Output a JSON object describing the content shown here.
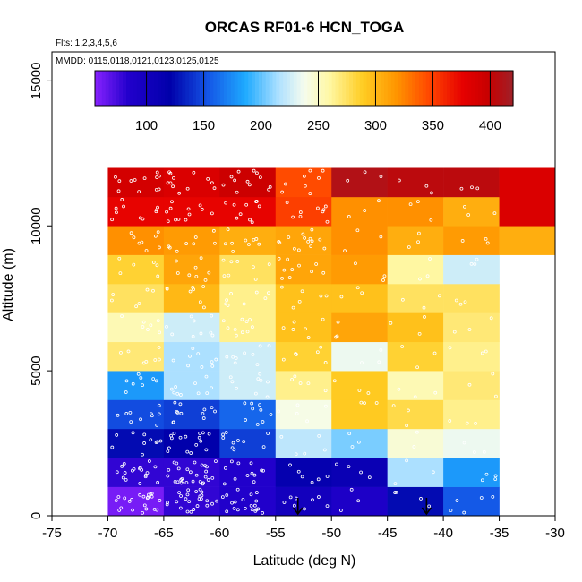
{
  "chart_data": {
    "type": "heatmap",
    "title": "ORCAS RF01-6 HCN_TOGA",
    "notes": [
      "Flts: 1,2,3,4,5,6",
      "MMDD: 0115,0118,0121,0123,0125,0125"
    ],
    "xlabel": "Latitude (deg N)",
    "ylabel": "Altitude (m)",
    "xlim": [
      -75,
      -30
    ],
    "ylim": [
      0,
      16000
    ],
    "x_ticks": [
      -75,
      -70,
      -65,
      -60,
      -55,
      -50,
      -45,
      -40,
      -35,
      -30
    ],
    "y_ticks": [
      0,
      5000,
      10000,
      15000
    ],
    "x_bins": [
      -70,
      -65,
      -60,
      -55,
      -50,
      -45,
      -40,
      -35,
      -30
    ],
    "y_bins": [
      0,
      1000,
      2000,
      3000,
      4000,
      5000,
      6000,
      7000,
      8000,
      9000,
      10000,
      11000,
      12000
    ],
    "values": [
      [
        60,
        80,
        85,
        100,
        90,
        125,
        155,
        null
      ],
      [
        80,
        80,
        85,
        115,
        110,
        215,
        180,
        null
      ],
      [
        125,
        120,
        145,
        220,
        205,
        245,
        235,
        null
      ],
      [
        150,
        145,
        160,
        240,
        290,
        280,
        265,
        null
      ],
      [
        180,
        215,
        225,
        265,
        290,
        255,
        270,
        null
      ],
      [
        270,
        215,
        225,
        285,
        235,
        285,
        265,
        null
      ],
      [
        255,
        225,
        265,
        295,
        310,
        295,
        270,
        null
      ],
      [
        275,
        300,
        265,
        295,
        295,
        275,
        275,
        null
      ],
      [
        285,
        310,
        275,
        310,
        315,
        260,
        225,
        null
      ],
      [
        320,
        315,
        305,
        310,
        320,
        305,
        315,
        305
      ],
      [
        375,
        375,
        375,
        350,
        320,
        320,
        305,
        385
      ],
      [
        390,
        385,
        395,
        345,
        410,
        405,
        405,
        385
      ]
    ],
    "colorbar": {
      "ticks": [
        100,
        150,
        200,
        250,
        300,
        350,
        400
      ],
      "range": [
        55,
        420
      ]
    },
    "arrows_lat": [
      -53,
      -41.5
    ]
  }
}
